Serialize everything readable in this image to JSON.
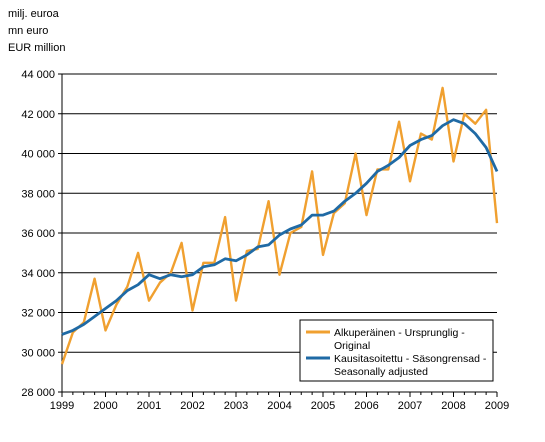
{
  "units": [
    "milj. euroa",
    "mn euro",
    "EUR million"
  ],
  "colors": {
    "original": "#f0a030",
    "adjusted": "#1f6aa5",
    "grid": "#000000"
  },
  "chart_data": {
    "type": "line",
    "title": "",
    "xlabel": "",
    "ylabel": "",
    "ylim": [
      28000,
      44000
    ],
    "yticks": [
      28000,
      30000,
      32000,
      34000,
      36000,
      38000,
      40000,
      42000,
      44000
    ],
    "ytick_labels": [
      "28 000",
      "30 000",
      "32 000",
      "34 000",
      "36 000",
      "38 000",
      "40 000",
      "42 000",
      "44 000"
    ],
    "xlim": [
      1999,
      2009
    ],
    "xticks": [
      1999,
      2000,
      2001,
      2002,
      2003,
      2004,
      2005,
      2006,
      2007,
      2008,
      2009
    ],
    "xtick_labels": [
      "1999",
      "2000",
      "2001",
      "2002",
      "2003",
      "2004",
      "2005",
      "2006",
      "2007",
      "2008",
      "2009"
    ],
    "grid": "horizontal",
    "legend_position": "bottom-right",
    "series": [
      {
        "name_lines": [
          "Alkuperäinen - Ursprunglig -",
          "Original"
        ],
        "color": "#f0a030",
        "points": [
          [
            1999.0,
            29400
          ],
          [
            1999.25,
            31000
          ],
          [
            1999.5,
            31500
          ],
          [
            1999.75,
            33700
          ],
          [
            2000.0,
            31100
          ],
          [
            2000.25,
            32400
          ],
          [
            2000.5,
            33300
          ],
          [
            2000.75,
            35000
          ],
          [
            2001.0,
            32600
          ],
          [
            2001.25,
            33500
          ],
          [
            2001.5,
            34000
          ],
          [
            2001.75,
            35500
          ],
          [
            2002.0,
            32100
          ],
          [
            2002.25,
            34500
          ],
          [
            2002.5,
            34500
          ],
          [
            2002.75,
            36800
          ],
          [
            2003.0,
            32600
          ],
          [
            2003.25,
            35100
          ],
          [
            2003.5,
            35200
          ],
          [
            2003.75,
            37600
          ],
          [
            2004.0,
            33900
          ],
          [
            2004.25,
            36000
          ],
          [
            2004.5,
            36300
          ],
          [
            2004.75,
            39100
          ],
          [
            2005.0,
            34900
          ],
          [
            2005.25,
            37000
          ],
          [
            2005.5,
            37500
          ],
          [
            2005.75,
            40000
          ],
          [
            2006.0,
            36900
          ],
          [
            2006.25,
            39200
          ],
          [
            2006.5,
            39200
          ],
          [
            2006.75,
            41600
          ],
          [
            2007.0,
            38600
          ],
          [
            2007.25,
            41000
          ],
          [
            2007.5,
            40700
          ],
          [
            2007.75,
            43300
          ],
          [
            2008.0,
            39600
          ],
          [
            2008.25,
            42000
          ],
          [
            2008.5,
            41500
          ],
          [
            2008.75,
            42200
          ],
          [
            2009.0,
            36500
          ]
        ]
      },
      {
        "name_lines": [
          "Kausitasoitettu - Säsongrensad -",
          "Seasonally adjusted"
        ],
        "color": "#1f6aa5",
        "points": [
          [
            1999.0,
            30900
          ],
          [
            1999.25,
            31100
          ],
          [
            1999.5,
            31400
          ],
          [
            1999.75,
            31800
          ],
          [
            2000.0,
            32200
          ],
          [
            2000.25,
            32600
          ],
          [
            2000.5,
            33100
          ],
          [
            2000.75,
            33400
          ],
          [
            2001.0,
            33900
          ],
          [
            2001.25,
            33700
          ],
          [
            2001.5,
            33900
          ],
          [
            2001.75,
            33800
          ],
          [
            2002.0,
            33900
          ],
          [
            2002.25,
            34300
          ],
          [
            2002.5,
            34400
          ],
          [
            2002.75,
            34700
          ],
          [
            2003.0,
            34600
          ],
          [
            2003.25,
            34900
          ],
          [
            2003.5,
            35300
          ],
          [
            2003.75,
            35400
          ],
          [
            2004.0,
            35900
          ],
          [
            2004.25,
            36200
          ],
          [
            2004.5,
            36400
          ],
          [
            2004.75,
            36900
          ],
          [
            2005.0,
            36900
          ],
          [
            2005.25,
            37100
          ],
          [
            2005.5,
            37600
          ],
          [
            2005.75,
            38000
          ],
          [
            2006.0,
            38500
          ],
          [
            2006.25,
            39100
          ],
          [
            2006.5,
            39400
          ],
          [
            2006.75,
            39800
          ],
          [
            2007.0,
            40400
          ],
          [
            2007.25,
            40700
          ],
          [
            2007.5,
            40900
          ],
          [
            2007.75,
            41400
          ],
          [
            2008.0,
            41700
          ],
          [
            2008.25,
            41500
          ],
          [
            2008.5,
            41000
          ],
          [
            2008.75,
            40300
          ],
          [
            2009.0,
            39100
          ]
        ]
      }
    ]
  }
}
